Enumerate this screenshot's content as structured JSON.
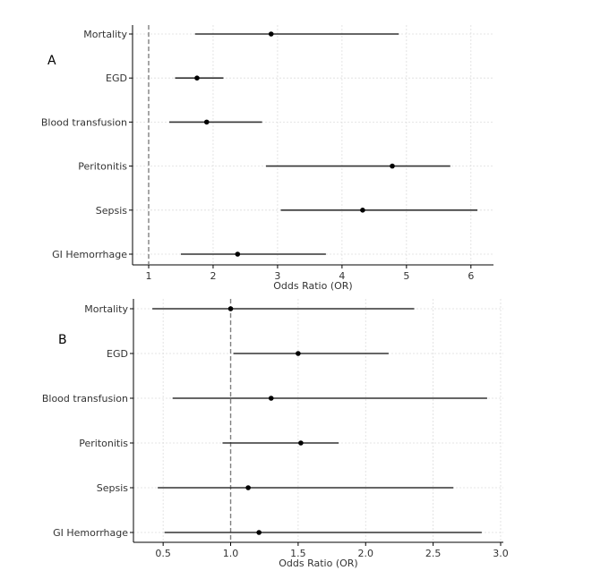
{
  "chart_data": [
    {
      "type": "forest",
      "panel_label": "A",
      "xlabel": "Odds Ratio (OR)",
      "xlim": [
        0.75,
        6.35
      ],
      "xticks": [
        "1",
        "2",
        "3",
        "4",
        "5",
        "6"
      ],
      "xtick_values": [
        1,
        2,
        3,
        4,
        5,
        6
      ],
      "reference_line": 1,
      "grid": true,
      "categories": [
        "Mortality",
        "EGD",
        "Blood transfusion",
        "Peritonitis",
        "Sepsis",
        "GI Hemorrhage"
      ],
      "or": [
        2.9,
        1.75,
        1.9,
        4.78,
        4.32,
        2.38
      ],
      "ci_low": [
        1.72,
        1.41,
        1.32,
        2.82,
        3.05,
        1.5
      ],
      "ci_high": [
        4.88,
        2.16,
        2.76,
        5.68,
        6.1,
        3.75
      ]
    },
    {
      "type": "forest",
      "panel_label": "B",
      "xlabel": "Odds Ratio (OR)",
      "xlim": [
        0.28,
        3.02
      ],
      "xticks": [
        "0.5",
        "1.0",
        "1.5",
        "2.0",
        "2.5",
        "3.0"
      ],
      "xtick_values": [
        0.5,
        1.0,
        1.5,
        2.0,
        2.5,
        3.0
      ],
      "reference_line": 1,
      "grid": true,
      "categories": [
        "Mortality",
        "EGD",
        "Blood transfusion",
        "Peritonitis",
        "Sepsis",
        "GI Hemorrhage"
      ],
      "or": [
        1.0,
        1.5,
        1.3,
        1.52,
        1.13,
        1.21
      ],
      "ci_low": [
        0.42,
        1.02,
        0.57,
        0.94,
        0.46,
        0.51
      ],
      "ci_high": [
        2.36,
        2.17,
        2.9,
        1.8,
        2.65,
        2.86
      ]
    }
  ]
}
